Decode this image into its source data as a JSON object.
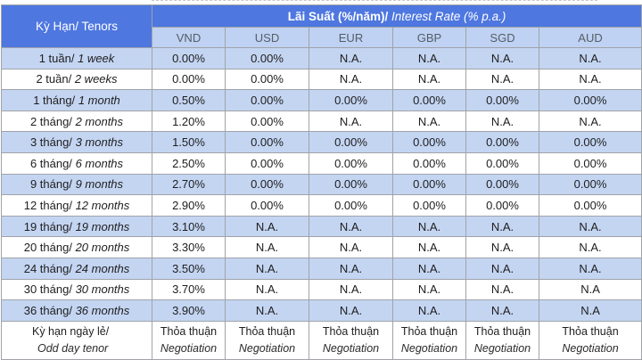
{
  "header": {
    "tenor_label": "Kỳ Hạn/ Tenors",
    "rate_label_vn": "Lãi Suất (%/năm)/",
    "rate_label_en": "Interest Rate (% p.a.)",
    "currencies": [
      "VND",
      "USD",
      "EUR",
      "GBP",
      "SGD",
      "AUD"
    ]
  },
  "rows": [
    {
      "tenor_vn": "1 tuần/",
      "tenor_en": "1 week",
      "values": [
        "0.00%",
        "0.00%",
        "N.A.",
        "N.A.",
        "N.A.",
        "N.A."
      ]
    },
    {
      "tenor_vn": "2 tuần/",
      "tenor_en": "2 weeks",
      "values": [
        "0.00%",
        "0.00%",
        "N.A.",
        "N.A.",
        "N.A.",
        "N.A."
      ]
    },
    {
      "tenor_vn": "1 tháng/",
      "tenor_en": "1 month",
      "values": [
        "0.50%",
        "0.00%",
        "0.00%",
        "0.00%",
        "0.00%",
        "0.00%"
      ]
    },
    {
      "tenor_vn": "2 tháng/",
      "tenor_en": "2 months",
      "values": [
        "1.20%",
        "0.00%",
        "N.A.",
        "N.A.",
        "N.A.",
        "N.A."
      ]
    },
    {
      "tenor_vn": "3 tháng/",
      "tenor_en": "3 months",
      "values": [
        "1.50%",
        "0.00%",
        "0.00%",
        "0.00%",
        "0.00%",
        "0.00%"
      ]
    },
    {
      "tenor_vn": "6 tháng/",
      "tenor_en": "6 months",
      "values": [
        "2.50%",
        "0.00%",
        "0.00%",
        "0.00%",
        "0.00%",
        "0.00%"
      ]
    },
    {
      "tenor_vn": "9 tháng/",
      "tenor_en": "9 months",
      "values": [
        "2.70%",
        "0.00%",
        "0.00%",
        "0.00%",
        "0.00%",
        "0.00%"
      ]
    },
    {
      "tenor_vn": "12 tháng/",
      "tenor_en": "12 months",
      "values": [
        "2.90%",
        "0.00%",
        "0.00%",
        "0.00%",
        "0.00%",
        "0.00%"
      ]
    },
    {
      "tenor_vn": "19 tháng/",
      "tenor_en": "19 months",
      "values": [
        "3.10%",
        "N.A.",
        "N.A.",
        "N.A.",
        "N.A.",
        "N.A."
      ]
    },
    {
      "tenor_vn": "20 tháng/",
      "tenor_en": "20 months",
      "values": [
        "3.30%",
        "N.A.",
        "N.A.",
        "N.A.",
        "N.A.",
        "N.A."
      ]
    },
    {
      "tenor_vn": "24 tháng/",
      "tenor_en": "24 months",
      "values": [
        "3.50%",
        "N.A.",
        "N.A.",
        "N.A.",
        "N.A.",
        "N.A."
      ]
    },
    {
      "tenor_vn": "30 tháng/",
      "tenor_en": "30 months",
      "values": [
        "3.70%",
        "N.A.",
        "N.A.",
        "N.A.",
        "N.A.",
        "N.A"
      ]
    },
    {
      "tenor_vn": "36 tháng/",
      "tenor_en": "36 months",
      "values": [
        "3.90%",
        "N.A.",
        "N.A.",
        "N.A.",
        "N.A.",
        "N.A"
      ]
    }
  ],
  "odd_day": {
    "tenor_vn": "Kỳ hạn ngày lẻ/",
    "tenor_en": "Odd day tenor",
    "value_vn": "Thỏa thuận",
    "value_en": "Negotiation"
  },
  "colors": {
    "header_blue": "#4e77e0",
    "currency_row": "#bfd2f3",
    "alt_row": "#c4d5f2"
  }
}
